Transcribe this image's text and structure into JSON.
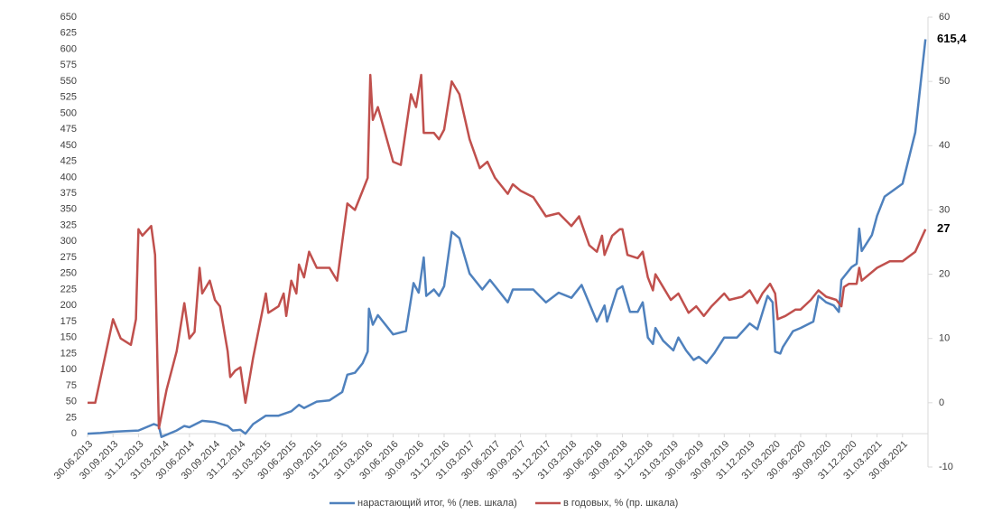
{
  "chart_data": {
    "type": "line",
    "xlim": [
      0,
      33
    ],
    "xticks": [
      {
        "value": 0,
        "label": "30.06.2013"
      },
      {
        "value": 1,
        "label": "30.09.2013"
      },
      {
        "value": 2,
        "label": "31.12.2013"
      },
      {
        "value": 3,
        "label": "31.03.2014"
      },
      {
        "value": 4,
        "label": "30.06.2014"
      },
      {
        "value": 5,
        "label": "30.09.2014"
      },
      {
        "value": 6,
        "label": "31.12.2014"
      },
      {
        "value": 7,
        "label": "31.03.2015"
      },
      {
        "value": 8,
        "label": "30.06.2015"
      },
      {
        "value": 9,
        "label": "30.09.2015"
      },
      {
        "value": 10,
        "label": "31.12.2015"
      },
      {
        "value": 11,
        "label": "31.03.2016"
      },
      {
        "value": 12,
        "label": "30.06.2016"
      },
      {
        "value": 13,
        "label": "30.09.2016"
      },
      {
        "value": 14,
        "label": "31.12.2016"
      },
      {
        "value": 15,
        "label": "31.03.2017"
      },
      {
        "value": 16,
        "label": "30.06.2017"
      },
      {
        "value": 17,
        "label": "30.09.2017"
      },
      {
        "value": 18,
        "label": "31.12.2017"
      },
      {
        "value": 19,
        "label": "31.03.2018"
      },
      {
        "value": 20,
        "label": "30.06.2018"
      },
      {
        "value": 21,
        "label": "30.09.2018"
      },
      {
        "value": 22,
        "label": "31.12.2018"
      },
      {
        "value": 23,
        "label": "31.03.2019"
      },
      {
        "value": 24,
        "label": "30.06.2019"
      },
      {
        "value": 25,
        "label": "30.09.2019"
      },
      {
        "value": 26,
        "label": "31.12.2019"
      },
      {
        "value": 27,
        "label": "31.03.2020"
      },
      {
        "value": 28,
        "label": "30.06.2020"
      },
      {
        "value": 29,
        "label": "30.09.2020"
      },
      {
        "value": 30,
        "label": "31.12.2020"
      },
      {
        "value": 31,
        "label": "31.03.2021"
      },
      {
        "value": 32,
        "label": "30.06.2021"
      }
    ],
    "ylim": [
      -52,
      650
    ],
    "yticks": [
      0,
      25,
      50,
      75,
      100,
      125,
      150,
      175,
      200,
      225,
      250,
      275,
      300,
      325,
      350,
      375,
      400,
      425,
      450,
      475,
      500,
      525,
      550,
      575,
      600,
      625,
      650
    ],
    "y2lim": [
      -10,
      60
    ],
    "y2ticks": [
      -10,
      0,
      10,
      20,
      30,
      40,
      50,
      60
    ],
    "series": [
      {
        "name": "нарастающий итог, % (лев. шкала)",
        "color": "#4f81bd",
        "axis": "y",
        "x": [
          0,
          0.5,
          1,
          1.5,
          2,
          2.6,
          2.8,
          2.9,
          3.5,
          3.8,
          4,
          4.5,
          5,
          5.5,
          5.7,
          6,
          6.2,
          6.5,
          7,
          7.5,
          8,
          8.3,
          8.5,
          9,
          9.5,
          10,
          10.2,
          10.5,
          10.8,
          11,
          11.05,
          11.2,
          11.4,
          12,
          12.5,
          12.8,
          13,
          13.2,
          13.3,
          13.6,
          13.8,
          14,
          14.3,
          14.6,
          15,
          15.5,
          15.8,
          16,
          16.5,
          16.7,
          17,
          17.5,
          18,
          18.5,
          19,
          19.4,
          20,
          20.3,
          20.4,
          20.8,
          21,
          21.3,
          21.6,
          21.8,
          22,
          22.2,
          22.3,
          22.6,
          23,
          23.2,
          23.5,
          23.8,
          24,
          24.3,
          24.6,
          25,
          25.5,
          26,
          26.3,
          26.7,
          26.9,
          27,
          27.2,
          27.3,
          27.7,
          28,
          28.5,
          28.7,
          29,
          29.3,
          29.5,
          29.6,
          30,
          30.2,
          30.3,
          30.4,
          30.8,
          31,
          31.3,
          32,
          32.5,
          32.9
        ],
        "values": [
          0,
          1,
          3,
          4,
          5,
          15,
          12,
          -5,
          5,
          12,
          10,
          20,
          18,
          12,
          5,
          6,
          0,
          15,
          28,
          28,
          35,
          45,
          40,
          50,
          52,
          65,
          92,
          95,
          110,
          128,
          195,
          170,
          185,
          155,
          160,
          235,
          220,
          275,
          215,
          225,
          215,
          230,
          315,
          305,
          250,
          225,
          240,
          230,
          205,
          225,
          225,
          225,
          205,
          220,
          212,
          232,
          175,
          200,
          175,
          225,
          230,
          190,
          190,
          205,
          150,
          140,
          165,
          145,
          130,
          150,
          130,
          115,
          120,
          110,
          125,
          150,
          150,
          172,
          163,
          215,
          205,
          128,
          125,
          135,
          160,
          165,
          175,
          215,
          205,
          200,
          190,
          240,
          260,
          265,
          320,
          285,
          310,
          340,
          370,
          390,
          470,
          615.4
        ],
        "value_labels": [
          null,
          null,
          null,
          null,
          null,
          null,
          null,
          null,
          null,
          null,
          null,
          null,
          null,
          null,
          null,
          null,
          null,
          null,
          null,
          null,
          null,
          null,
          null,
          null,
          null,
          null,
          null,
          null,
          null,
          null,
          null,
          null,
          null,
          null,
          null,
          null,
          null,
          null,
          null,
          null,
          null,
          null,
          null,
          null,
          null,
          null,
          null,
          null,
          null,
          null,
          null,
          null,
          null,
          null,
          null,
          null,
          null,
          null,
          null,
          null,
          null,
          null,
          null,
          null,
          null,
          null,
          null,
          null,
          null,
          null,
          null,
          null,
          null,
          null,
          null,
          null,
          null,
          null,
          null,
          null,
          null,
          null,
          null,
          null,
          null,
          null,
          null,
          null,
          null,
          null,
          null,
          null,
          null,
          null,
          null,
          null,
          null,
          null,
          null,
          null,
          null,
          "615,4"
        ]
      },
      {
        "name": "в годовых, % (пр. шкала)",
        "color": "#c0504d",
        "axis": "y2",
        "x": [
          0,
          0.3,
          1,
          1.3,
          1.7,
          1.9,
          2,
          2.15,
          2.5,
          2.65,
          2.8,
          3.1,
          3.5,
          3.8,
          4,
          4.2,
          4.4,
          4.5,
          4.8,
          5,
          5.2,
          5.5,
          5.6,
          5.8,
          6,
          6.2,
          6.5,
          7,
          7.1,
          7.5,
          7.7,
          7.8,
          8,
          8.2,
          8.3,
          8.5,
          8.7,
          9,
          9.5,
          9.8,
          10,
          10.2,
          10.5,
          10.8,
          11,
          11.1,
          11.2,
          11.4,
          12,
          12.3,
          12.7,
          12.9,
          13.1,
          13.2,
          13.6,
          13.8,
          14,
          14.3,
          14.6,
          15,
          15.4,
          15.7,
          16,
          16.5,
          16.7,
          17,
          17.5,
          18,
          18.5,
          19,
          19.3,
          19.7,
          20,
          20.2,
          20.3,
          20.6,
          20.9,
          21,
          21.2,
          21.6,
          21.8,
          22,
          22.2,
          22.3,
          22.6,
          22.9,
          23.2,
          23.6,
          23.9,
          24.2,
          24.5,
          25,
          25.2,
          25.7,
          26,
          26.3,
          26.5,
          26.8,
          27,
          27.1,
          27.4,
          27.8,
          28,
          28.4,
          28.7,
          29,
          29.4,
          29.6,
          29.7,
          29.9,
          30.2,
          30.3,
          30.4,
          31,
          31.5,
          32,
          32.5,
          32.9
        ],
        "values": [
          0,
          0,
          13,
          10,
          9,
          13,
          27,
          26,
          27.5,
          23,
          -4,
          2,
          8,
          15.5,
          10,
          11,
          21,
          17,
          19,
          16,
          15,
          8,
          4,
          5,
          5.5,
          0,
          7,
          17,
          14,
          15,
          17,
          13.5,
          19,
          17,
          21.5,
          19.5,
          23.5,
          21,
          21,
          19,
          25,
          31,
          30,
          33,
          35,
          51,
          44,
          46,
          37.5,
          37,
          48,
          46,
          51,
          42,
          42,
          41,
          42.5,
          50,
          48,
          41,
          36.5,
          37.5,
          35,
          32.5,
          34,
          33,
          32,
          29,
          29.5,
          27.5,
          29,
          24.5,
          23.5,
          26,
          23,
          26,
          27,
          27,
          23,
          22.5,
          23.5,
          19.5,
          17.5,
          20,
          18,
          16,
          17,
          14,
          15,
          13.5,
          15,
          17,
          16,
          16.5,
          17.5,
          15.5,
          17,
          18.5,
          17,
          13,
          13.5,
          14.5,
          14.5,
          16,
          17.5,
          16.5,
          16,
          15,
          18,
          18.5,
          18.5,
          21,
          19,
          21,
          22,
          22,
          23.5,
          27
        ],
        "value_labels": [
          null,
          null,
          null,
          null,
          null,
          null,
          null,
          null,
          null,
          null,
          null,
          null,
          null,
          null,
          null,
          null,
          null,
          null,
          null,
          null,
          null,
          null,
          null,
          null,
          null,
          null,
          null,
          null,
          null,
          null,
          null,
          null,
          null,
          null,
          null,
          null,
          null,
          null,
          null,
          null,
          null,
          null,
          null,
          null,
          null,
          null,
          null,
          null,
          null,
          null,
          null,
          null,
          null,
          null,
          null,
          null,
          null,
          null,
          null,
          null,
          null,
          null,
          null,
          null,
          null,
          null,
          null,
          null,
          null,
          null,
          null,
          null,
          null,
          null,
          null,
          null,
          null,
          null,
          null,
          null,
          null,
          null,
          null,
          null,
          null,
          null,
          null,
          null,
          null,
          null,
          null,
          null,
          null,
          null,
          null,
          null,
          null,
          null,
          null,
          null,
          null,
          null,
          null,
          null,
          null,
          null,
          null,
          null,
          null,
          null,
          null,
          null,
          null,
          null,
          null,
          null,
          null,
          "27"
        ]
      }
    ]
  }
}
